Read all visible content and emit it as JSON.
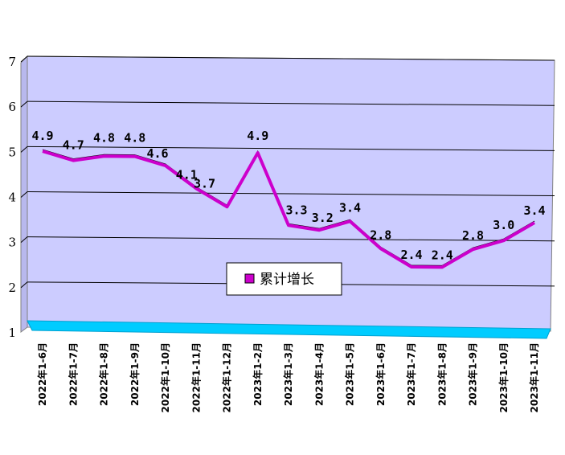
{
  "chart_data": {
    "type": "line",
    "categories": [
      "2022年1-6月",
      "2022年1-7月",
      "2022年1-8月",
      "2022年1-9月",
      "2022年1-10月",
      "2022年1-11月",
      "2022年1-12月",
      "2023年1-2月",
      "2023年1-3月",
      "2023年1-4月",
      "2023年1-5月",
      "2023年1-6月",
      "2023年1-7月",
      "2023年1-8月",
      "2023年1-9月",
      "2023年1-10月",
      "2023年1-11月"
    ],
    "series": [
      {
        "name": "累计增长",
        "values": [
          4.9,
          4.7,
          4.8,
          4.8,
          4.6,
          4.1,
          3.7,
          4.9,
          3.3,
          3.2,
          3.4,
          2.8,
          2.4,
          2.4,
          2.8,
          3.0,
          3.4
        ],
        "labels": [
          "4.9",
          "4.7",
          "4.8",
          "4.8",
          "4.6",
          "4.1",
          "3.7",
          "4.9",
          "3.3",
          "3.2",
          "3.4",
          "2.8",
          "2.4",
          "2.4",
          "2.8",
          "3.0",
          "3.4"
        ],
        "color": "#cc00cc"
      }
    ],
    "ylim": [
      1,
      7
    ],
    "yticks": [
      "1",
      "2",
      "3",
      "4",
      "5",
      "6",
      "7"
    ],
    "grid": true,
    "legend": "center",
    "colors": {
      "plot_wall": "#ccccff",
      "floor": "#00ccff",
      "line": "#cc00cc"
    }
  }
}
